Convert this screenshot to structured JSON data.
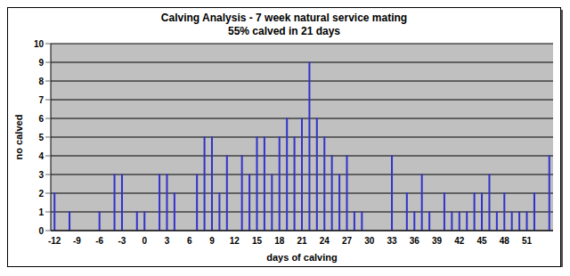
{
  "chart_data": {
    "type": "bar",
    "title": "Calving Analysis - 7 week natural service mating",
    "subtitle": "55% calved in 21 days",
    "x_label": "days of calving",
    "y_label": "no calved",
    "categories": [
      "-12",
      null,
      null,
      "-9",
      null,
      null,
      "-6",
      null,
      null,
      "-3",
      null,
      null,
      "0",
      null,
      null,
      "3",
      null,
      null,
      "6",
      null,
      null,
      "9",
      null,
      null,
      "12",
      null,
      null,
      "15",
      null,
      null,
      "18",
      null,
      null,
      "21",
      null,
      null,
      "24",
      null,
      null,
      "27",
      null,
      null,
      "30",
      null,
      null,
      "33",
      null,
      null,
      "36",
      null,
      null,
      "39",
      null,
      null,
      "42",
      null,
      null,
      "45",
      null,
      null,
      "48",
      null,
      null,
      "51",
      null,
      null,
      null
    ],
    "values": [
      2,
      0,
      1,
      0,
      0,
      0,
      1,
      0,
      3,
      3,
      0,
      1,
      1,
      0,
      3,
      3,
      2,
      0,
      0,
      3,
      5,
      5,
      2,
      4,
      0,
      4,
      3,
      5,
      5,
      3,
      5,
      6,
      5,
      6,
      9,
      6,
      5,
      4,
      3,
      4,
      1,
      1,
      0,
      0,
      0,
      4,
      0,
      2,
      1,
      3,
      1,
      0,
      2,
      1,
      1,
      1,
      2,
      2,
      3,
      1,
      2,
      1,
      1,
      1,
      2,
      0,
      4
    ],
    "color": "#3333cc",
    "ylim": [
      0,
      10
    ],
    "yticks": [
      0,
      1,
      2,
      3,
      4,
      5,
      6,
      7,
      8,
      9,
      10
    ],
    "grid": true
  }
}
